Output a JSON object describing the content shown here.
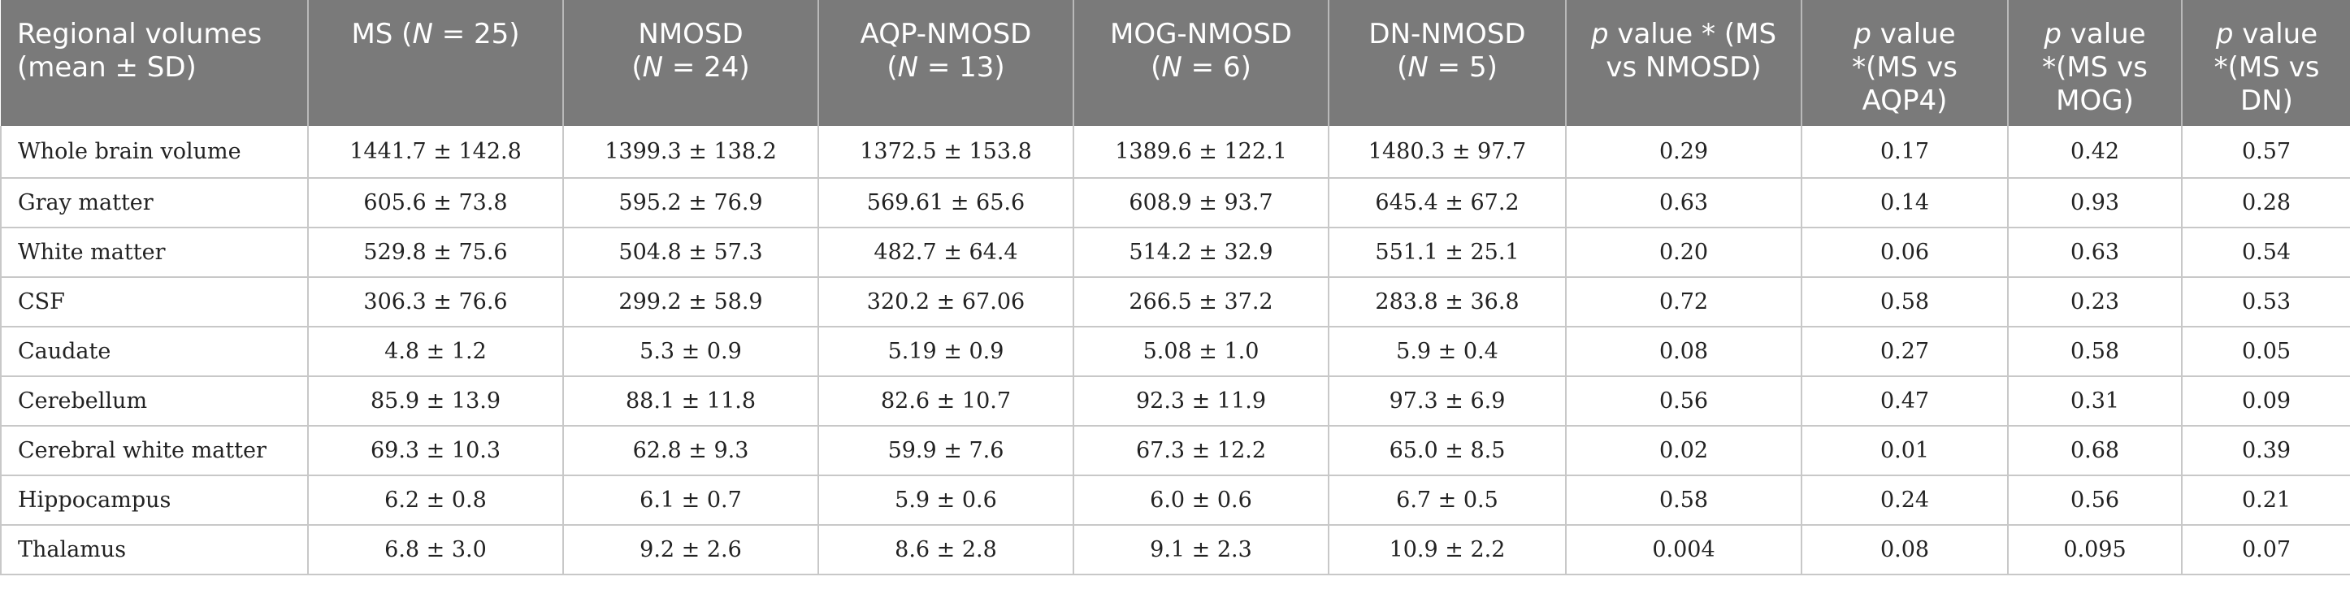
{
  "table": {
    "headers": [
      {
        "line1": "Regional volumes",
        "line2": "(mean ± SD)"
      },
      {
        "line1": "MS (N = 25)",
        "line2": ""
      },
      {
        "line1": "NMOSD",
        "line2": "(N = 24)"
      },
      {
        "line1": "AQP-NMOSD",
        "line2": "(N = 13)"
      },
      {
        "line1": "MOG-NMOSD",
        "line2": "(N = 6)"
      },
      {
        "line1": "DN-NMOSD",
        "line2": "(N = 5)"
      },
      {
        "line1": "p value * (MS",
        "line2": "vs NMOSD)",
        "line3": ""
      },
      {
        "line1": "p value",
        "line2": "*(MS vs",
        "line3": "AQP4)"
      },
      {
        "line1": "p value",
        "line2": "*(MS vs",
        "line3": "MOG)"
      },
      {
        "line1": "p value",
        "line2": "*(MS vs",
        "line3": "DN)"
      }
    ],
    "rows": [
      [
        "Whole brain volume",
        "1441.7 ± 142.8",
        "1399.3 ± 138.2",
        "1372.5 ± 153.8",
        "1389.6 ± 122.1",
        "1480.3 ± 97.7",
        "0.29",
        "0.17",
        "0.42",
        "0.57"
      ],
      [
        "Gray matter",
        "605.6 ± 73.8",
        "595.2 ± 76.9",
        "569.61 ± 65.6",
        "608.9 ± 93.7",
        "645.4 ± 67.2",
        "0.63",
        "0.14",
        "0.93",
        "0.28"
      ],
      [
        "White matter",
        "529.8 ± 75.6",
        "504.8 ± 57.3",
        "482.7 ± 64.4",
        "514.2 ± 32.9",
        "551.1 ± 25.1",
        "0.20",
        "0.06",
        "0.63",
        "0.54"
      ],
      [
        "CSF",
        "306.3 ± 76.6",
        "299.2 ± 58.9",
        "320.2 ± 67.06",
        "266.5 ± 37.2",
        "283.8 ± 36.8",
        "0.72",
        "0.58",
        "0.23",
        "0.53"
      ],
      [
        "Caudate",
        "4.8 ± 1.2",
        "5.3 ± 0.9",
        "5.19 ± 0.9",
        "5.08 ± 1.0",
        "5.9 ± 0.4",
        "0.08",
        "0.27",
        "0.58",
        "0.05"
      ],
      [
        "Cerebellum",
        "85.9 ± 13.9",
        "88.1 ± 11.8",
        "82.6 ± 10.7",
        "92.3 ± 11.9",
        "97.3 ± 6.9",
        "0.56",
        "0.47",
        "0.31",
        "0.09"
      ],
      [
        "Cerebral white matter",
        "69.3 ± 10.3",
        "62.8 ± 9.3",
        "59.9 ± 7.6",
        "67.3 ± 12.2",
        "65.0 ± 8.5",
        "0.02",
        "0.01",
        "0.68",
        "0.39"
      ],
      [
        "Hippocampus",
        "6.2 ± 0.8",
        "6.1 ± 0.7",
        "5.9 ± 0.6",
        "6.0 ± 0.6",
        "6.7 ± 0.5",
        "0.58",
        "0.24",
        "0.56",
        "0.21"
      ],
      [
        "Thalamus",
        "6.8 ± 3.0",
        "9.2 ± 2.6",
        "8.6 ± 2.8",
        "9.1 ± 2.3",
        "10.9 ± 2.2",
        "0.004",
        "0.08",
        "0.095",
        "0.07"
      ]
    ]
  }
}
